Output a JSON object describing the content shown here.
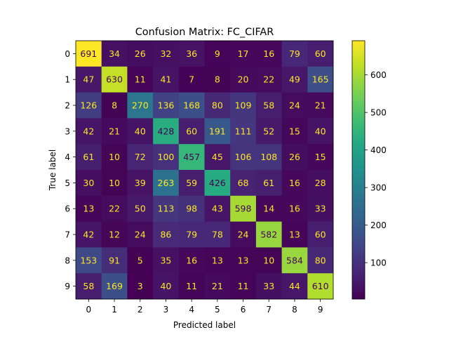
{
  "chart_data": {
    "type": "heatmap",
    "title": "Confusion Matrix: FC_CIFAR",
    "xlabel": "Predicted label",
    "ylabel": "True label",
    "x_categories": [
      "0",
      "1",
      "2",
      "3",
      "4",
      "5",
      "6",
      "7",
      "8",
      "9"
    ],
    "y_categories": [
      "0",
      "1",
      "2",
      "3",
      "4",
      "5",
      "6",
      "7",
      "8",
      "9"
    ],
    "matrix": [
      [
        691,
        34,
        26,
        32,
        36,
        9,
        17,
        16,
        79,
        60
      ],
      [
        47,
        630,
        11,
        41,
        7,
        8,
        20,
        22,
        49,
        165
      ],
      [
        126,
        8,
        270,
        136,
        168,
        80,
        109,
        58,
        24,
        21
      ],
      [
        42,
        21,
        40,
        428,
        60,
        191,
        111,
        52,
        15,
        40
      ],
      [
        61,
        10,
        72,
        100,
        457,
        45,
        106,
        108,
        26,
        15
      ],
      [
        30,
        10,
        39,
        263,
        59,
        426,
        68,
        61,
        16,
        28
      ],
      [
        13,
        22,
        50,
        113,
        98,
        43,
        598,
        14,
        16,
        33
      ],
      [
        42,
        12,
        24,
        86,
        79,
        78,
        24,
        582,
        13,
        60
      ],
      [
        153,
        91,
        5,
        35,
        16,
        13,
        13,
        10,
        584,
        80
      ],
      [
        58,
        169,
        3,
        40,
        11,
        21,
        11,
        33,
        44,
        610
      ]
    ],
    "colormap": "viridis",
    "colorbar": {
      "min": 3,
      "max": 691,
      "ticks": [
        100,
        200,
        300,
        400,
        500,
        600
      ]
    },
    "text_color_light": "#fde725",
    "text_color_dark": "#440154",
    "grid": false
  }
}
